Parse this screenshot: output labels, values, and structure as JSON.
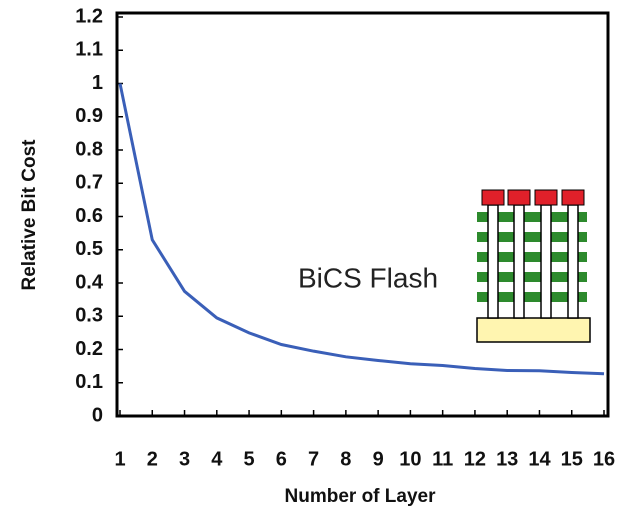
{
  "chart_data": {
    "type": "line",
    "x": [
      1,
      2,
      3,
      4,
      5,
      6,
      7,
      8,
      9,
      10,
      11,
      12,
      13,
      14,
      15,
      16
    ],
    "values": [
      1.0,
      0.53,
      0.375,
      0.295,
      0.25,
      0.215,
      0.195,
      0.178,
      0.167,
      0.157,
      0.152,
      0.143,
      0.137,
      0.136,
      0.131,
      0.127
    ],
    "color": "#3a5fb8",
    "xlim": [
      1,
      16
    ],
    "xticks": [
      1,
      2,
      3,
      4,
      5,
      6,
      7,
      8,
      9,
      10,
      11,
      12,
      13,
      14,
      15,
      16
    ],
    "ylim": [
      0,
      1.2
    ],
    "yticks": [
      0,
      0.1,
      0.2,
      0.3,
      0.4,
      0.5,
      0.6,
      0.7,
      0.8,
      0.9,
      1,
      1.1,
      1.2
    ],
    "xlabel": "Number of Layer",
    "ylabel": "Relative Bit Cost",
    "annotation": "BiCS Flash"
  }
}
